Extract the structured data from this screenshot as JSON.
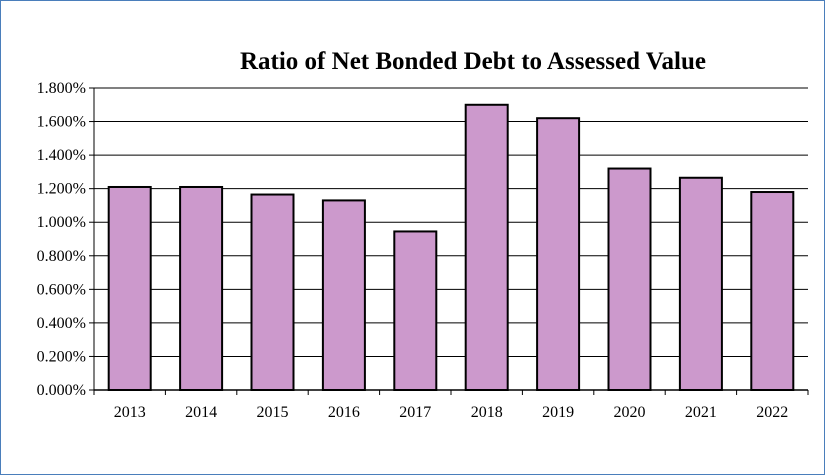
{
  "chart_data": {
    "type": "bar",
    "title": "Ratio of Net Bonded Debt to Assessed Value",
    "xlabel": "",
    "ylabel": "",
    "categories": [
      "2013",
      "2014",
      "2015",
      "2016",
      "2017",
      "2018",
      "2019",
      "2020",
      "2021",
      "2022"
    ],
    "values": [
      1.21,
      1.21,
      1.165,
      1.13,
      0.945,
      1.7,
      1.62,
      1.32,
      1.265,
      1.18
    ],
    "ylim": [
      0,
      1.8
    ],
    "yticks": [
      0,
      0.2,
      0.4,
      0.6,
      0.8,
      1.0,
      1.2,
      1.4,
      1.6,
      1.8
    ],
    "ytick_labels": [
      "0.000%",
      "0.200%",
      "0.400%",
      "0.600%",
      "0.800%",
      "1.000%",
      "1.200%",
      "1.400%",
      "1.600%",
      "1.800%"
    ],
    "grid": true,
    "legend": "none",
    "bar_color": "#cc99cc",
    "bar_edge_color": "#000000",
    "frame_color": "#4a7ebb"
  }
}
